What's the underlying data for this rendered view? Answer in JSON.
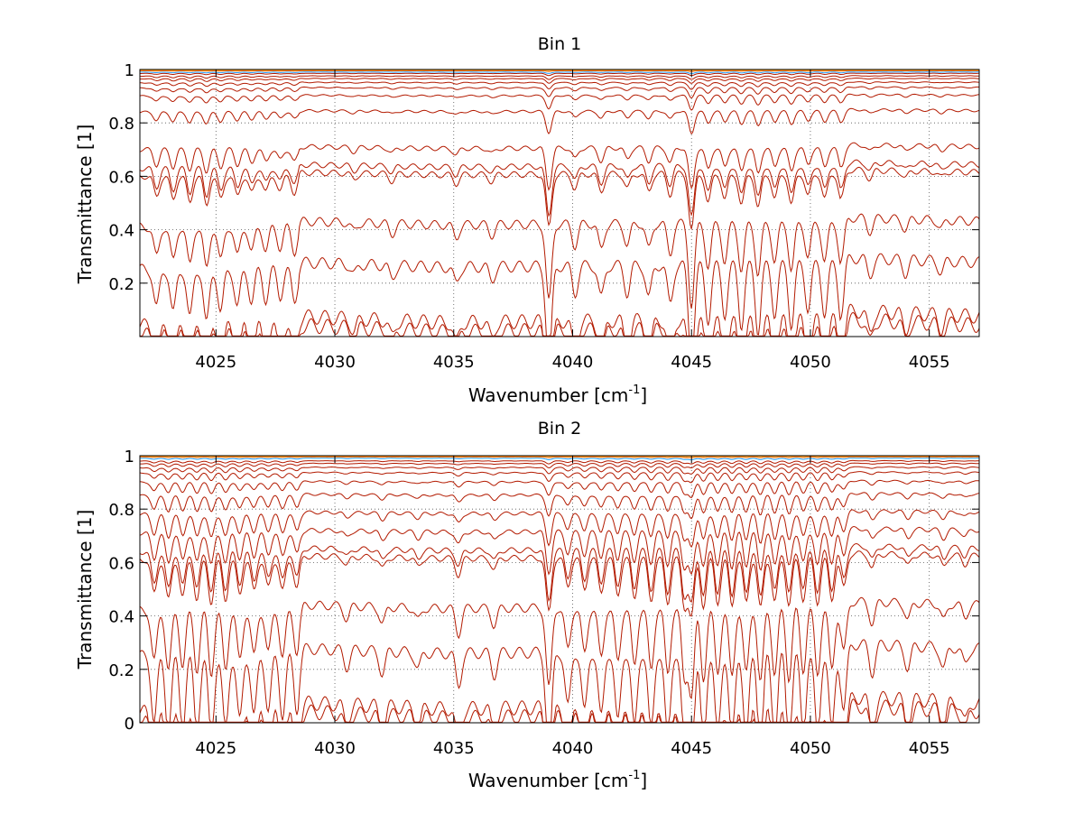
{
  "chart_data": [
    {
      "type": "line",
      "title": "Bin 1",
      "xlabel": "Wavenumber [cm",
      "xlabel_sup": "-1",
      "xlabel_close": "]",
      "ylabel": "Transmittance [1]",
      "xlim": [
        4021.8,
        4057.1
      ],
      "ylim": [
        0,
        1
      ],
      "xticks": [
        4025,
        4030,
        4035,
        4040,
        4045,
        4050,
        4055
      ],
      "yticks": [
        0.2,
        0.4,
        0.6,
        0.8,
        1
      ],
      "ytick_labels": [
        "0.2",
        "0.4",
        "0.6",
        "0.8",
        "1"
      ],
      "grid": true,
      "curve_color": "#b31a00",
      "upper_colors": [
        "#ff6a00",
        "#ff9a00",
        "#e8d000",
        "#3fbf6f",
        "#20a0ff"
      ],
      "series_baselines": [
        0.005,
        0.04,
        0.25,
        0.41,
        0.6,
        0.63,
        0.7,
        0.84,
        0.9,
        0.93,
        0.95,
        0.965,
        0.975,
        0.985,
        0.99,
        0.995,
        0.998
      ],
      "line_strengths": [
        [
          4022.5,
          0.35
        ],
        [
          4023.2,
          0.4
        ],
        [
          4023.9,
          0.45
        ],
        [
          4024.6,
          0.5
        ],
        [
          4025.2,
          0.4
        ],
        [
          4025.9,
          0.35
        ],
        [
          4026.5,
          0.3
        ],
        [
          4027.1,
          0.28
        ],
        [
          4027.7,
          0.25
        ],
        [
          4028.3,
          0.3
        ],
        [
          4030.8,
          0.1
        ],
        [
          4032.4,
          0.12
        ],
        [
          4035.1,
          0.15
        ],
        [
          4036.6,
          0.12
        ],
        [
          4039.0,
          0.9
        ],
        [
          4040.1,
          0.25
        ],
        [
          4041.2,
          0.3
        ],
        [
          4042.3,
          0.25
        ],
        [
          4043.2,
          0.3
        ],
        [
          4044.1,
          0.35
        ],
        [
          4045.0,
          0.95
        ],
        [
          4045.7,
          0.5
        ],
        [
          4046.4,
          0.45
        ],
        [
          4047.1,
          0.55
        ],
        [
          4047.8,
          0.6
        ],
        [
          4048.5,
          0.45
        ],
        [
          4049.2,
          0.55
        ],
        [
          4049.9,
          0.4
        ],
        [
          4050.6,
          0.45
        ],
        [
          4051.3,
          0.5
        ],
        [
          4052.5,
          0.15
        ],
        [
          4054.0,
          0.12
        ],
        [
          4055.5,
          0.1
        ]
      ],
      "step_edges": [
        4028.5,
        4051.3
      ]
    },
    {
      "type": "line",
      "title": "Bin 2",
      "xlabel": "Wavenumber [cm",
      "xlabel_sup": "-1",
      "xlabel_close": "]",
      "ylabel": "Transmittance [1]",
      "xlim": [
        4021.8,
        4057.1
      ],
      "ylim": [
        0,
        1
      ],
      "xticks": [
        4025,
        4030,
        4035,
        4040,
        4045,
        4050,
        4055
      ],
      "yticks": [
        0,
        0.2,
        0.4,
        0.6,
        0.8,
        1
      ],
      "ytick_labels": [
        "0",
        "0.2",
        "0.4",
        "0.6",
        "0.8",
        "1"
      ],
      "grid": true,
      "curve_color": "#b31a00",
      "upper_colors": [
        "#ff6a00",
        "#ff9a00",
        "#e8d000",
        "#3fbf6f",
        "#20a0ff"
      ],
      "series_baselines": [
        0.005,
        0.04,
        0.25,
        0.42,
        0.61,
        0.64,
        0.71,
        0.78,
        0.85,
        0.9,
        0.935,
        0.955,
        0.97,
        0.98,
        0.99,
        0.995,
        0.998
      ],
      "line_strengths": [
        [
          4022.4,
          0.6
        ],
        [
          4023.0,
          0.7
        ],
        [
          4023.6,
          0.65
        ],
        [
          4024.2,
          0.7
        ],
        [
          4024.8,
          0.75
        ],
        [
          4025.4,
          0.7
        ],
        [
          4026.0,
          0.6
        ],
        [
          4026.6,
          0.55
        ],
        [
          4027.2,
          0.5
        ],
        [
          4027.8,
          0.55
        ],
        [
          4028.4,
          0.5
        ],
        [
          4030.5,
          0.15
        ],
        [
          4032.0,
          0.2
        ],
        [
          4033.5,
          0.15
        ],
        [
          4035.2,
          0.3
        ],
        [
          4036.7,
          0.2
        ],
        [
          4039.0,
          0.95
        ],
        [
          4039.8,
          0.5
        ],
        [
          4040.5,
          0.55
        ],
        [
          4041.2,
          0.6
        ],
        [
          4041.9,
          0.65
        ],
        [
          4042.6,
          0.7
        ],
        [
          4043.3,
          0.75
        ],
        [
          4044.0,
          0.8
        ],
        [
          4044.7,
          0.85
        ],
        [
          4045.0,
          1.0
        ],
        [
          4045.5,
          0.85
        ],
        [
          4046.1,
          0.8
        ],
        [
          4046.7,
          0.85
        ],
        [
          4047.3,
          0.8
        ],
        [
          4047.9,
          0.9
        ],
        [
          4048.5,
          0.8
        ],
        [
          4049.1,
          0.85
        ],
        [
          4049.7,
          0.75
        ],
        [
          4050.3,
          0.8
        ],
        [
          4050.9,
          0.75
        ],
        [
          4051.4,
          0.6
        ],
        [
          4052.6,
          0.25
        ],
        [
          4054.1,
          0.2
        ],
        [
          4055.6,
          0.2
        ],
        [
          4056.5,
          0.15
        ]
      ],
      "step_edges": [
        4028.5,
        4051.3
      ]
    }
  ]
}
